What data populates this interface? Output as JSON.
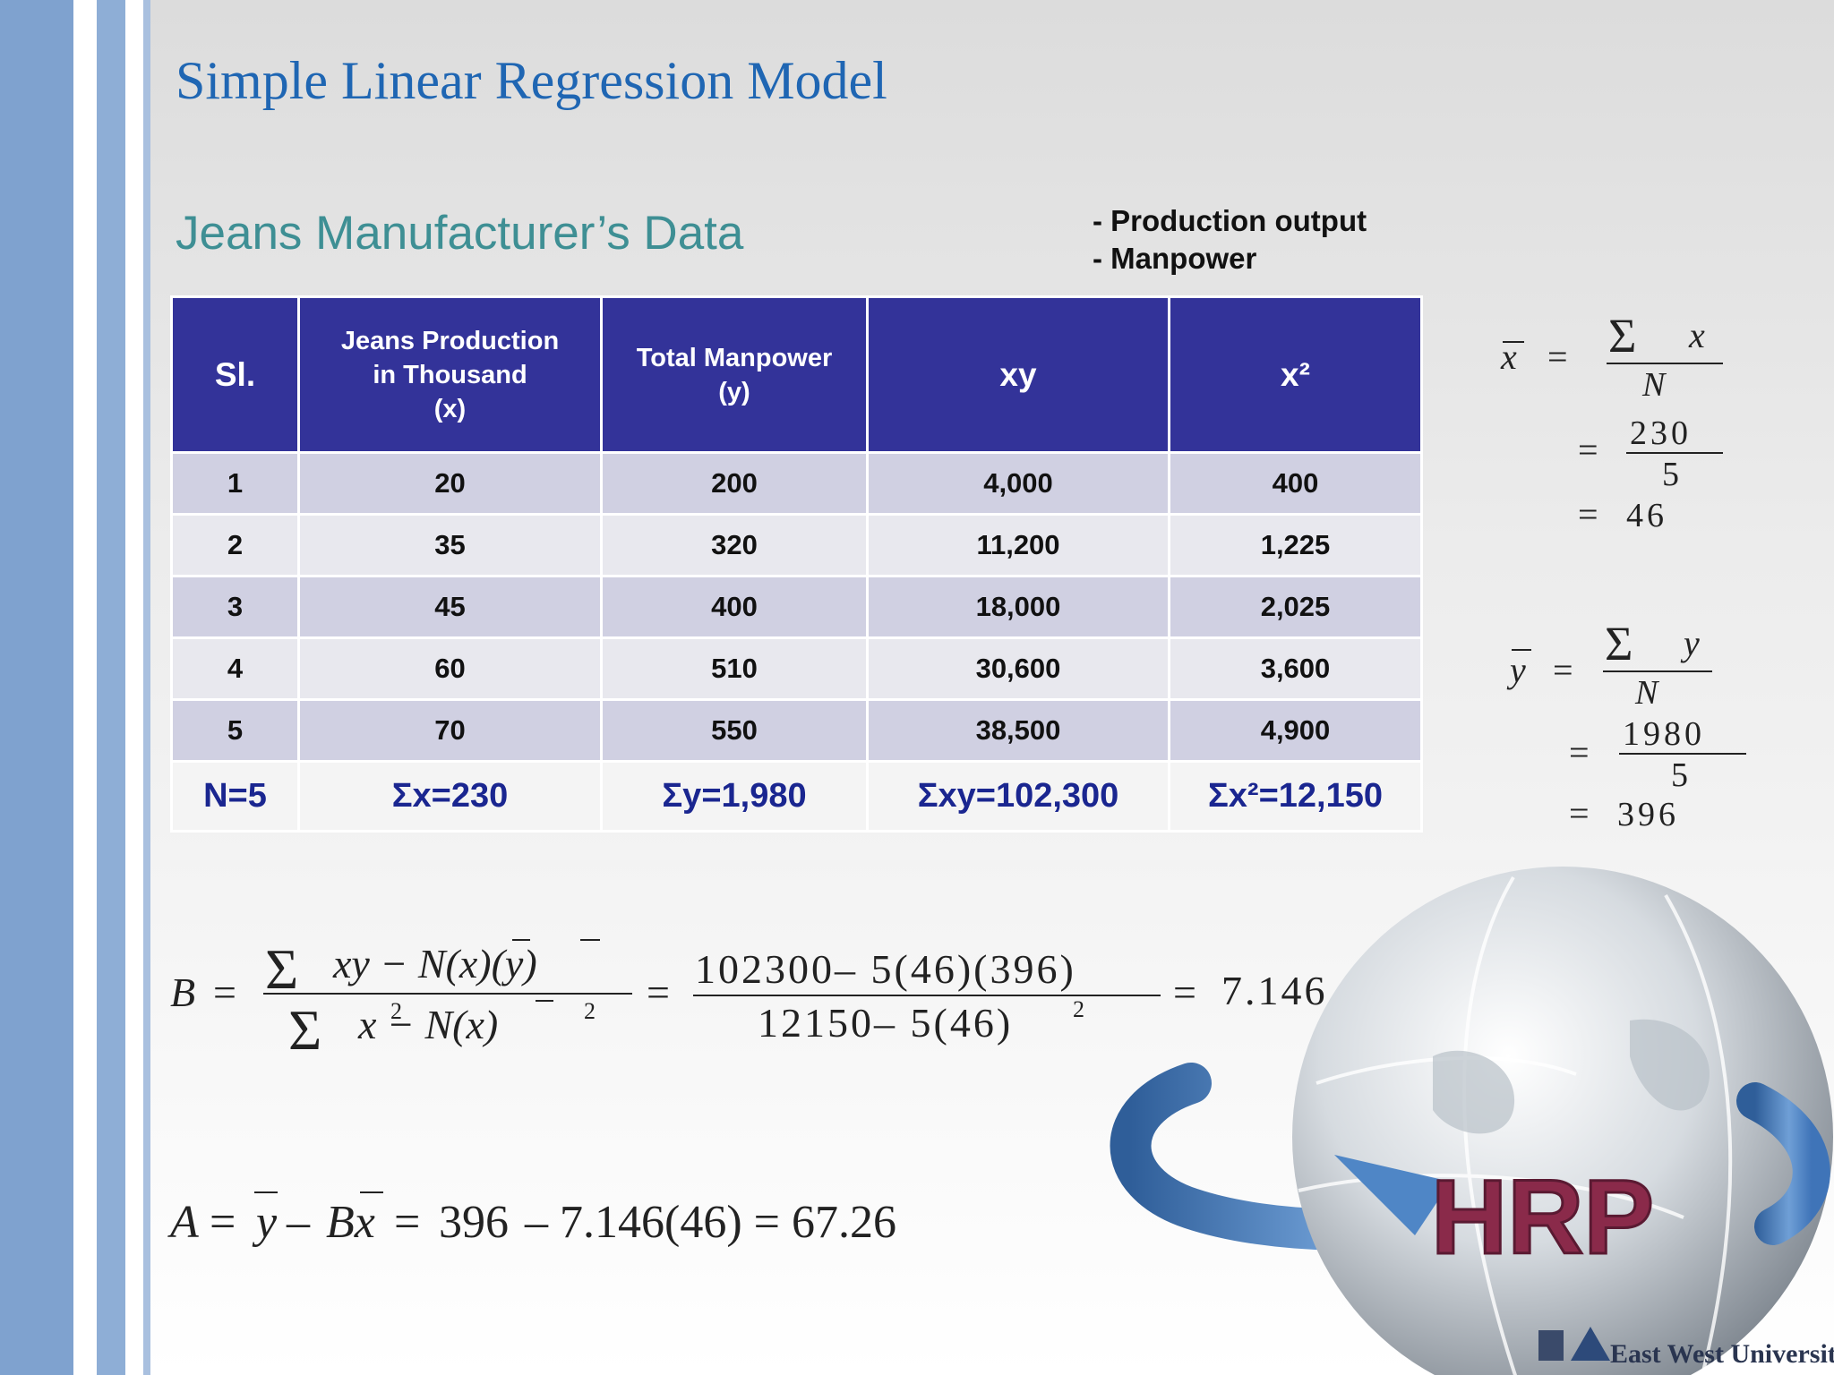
{
  "title": "Simple Linear Regression Model",
  "subtitle": "Jeans Manufacturer’s Data",
  "notes": [
    "- Production output",
    "- Manpower"
  ],
  "table": {
    "headers": {
      "sl": "Sl.",
      "x_line1": "Jeans Production",
      "x_line2": "in Thousand",
      "x_line3": "(x)",
      "y_line1": "Total Manpower",
      "y_line2": "(y)",
      "xy": "xy",
      "x2": "x²"
    },
    "rows": [
      [
        "1",
        "20",
        "200",
        "4,000",
        "400"
      ],
      [
        "2",
        "35",
        "320",
        "11,200",
        "1,225"
      ],
      [
        "3",
        "45",
        "400",
        "18,000",
        "2,025"
      ],
      [
        "4",
        "60",
        "510",
        "30,600",
        "3,600"
      ],
      [
        "5",
        "70",
        "550",
        "38,500",
        "4,900"
      ]
    ],
    "totals": [
      "N=5",
      "Σx=230",
      "Σy=1,980",
      "Σxy=102,300",
      "Σx²=12,150"
    ]
  },
  "xbar": {
    "sum_var": "x",
    "denom": "N",
    "num_value": "230",
    "den_value": "5",
    "result": "46"
  },
  "ybar": {
    "sum_var": "y",
    "denom": "N",
    "num_value": "1980",
    "den_value": "5",
    "result": "396"
  },
  "formula_b": {
    "lhs": "B",
    "num_value": "102300– 5(46)(396)",
    "den_value": "12150– 5(46)",
    "result": "7.146"
  },
  "formula_a": {
    "lhs": "A",
    "rest": "– 7.146(46) = 67.26",
    "mid_value": "396"
  },
  "logo": {
    "globe_text": "HRP",
    "university": "East West University"
  }
}
